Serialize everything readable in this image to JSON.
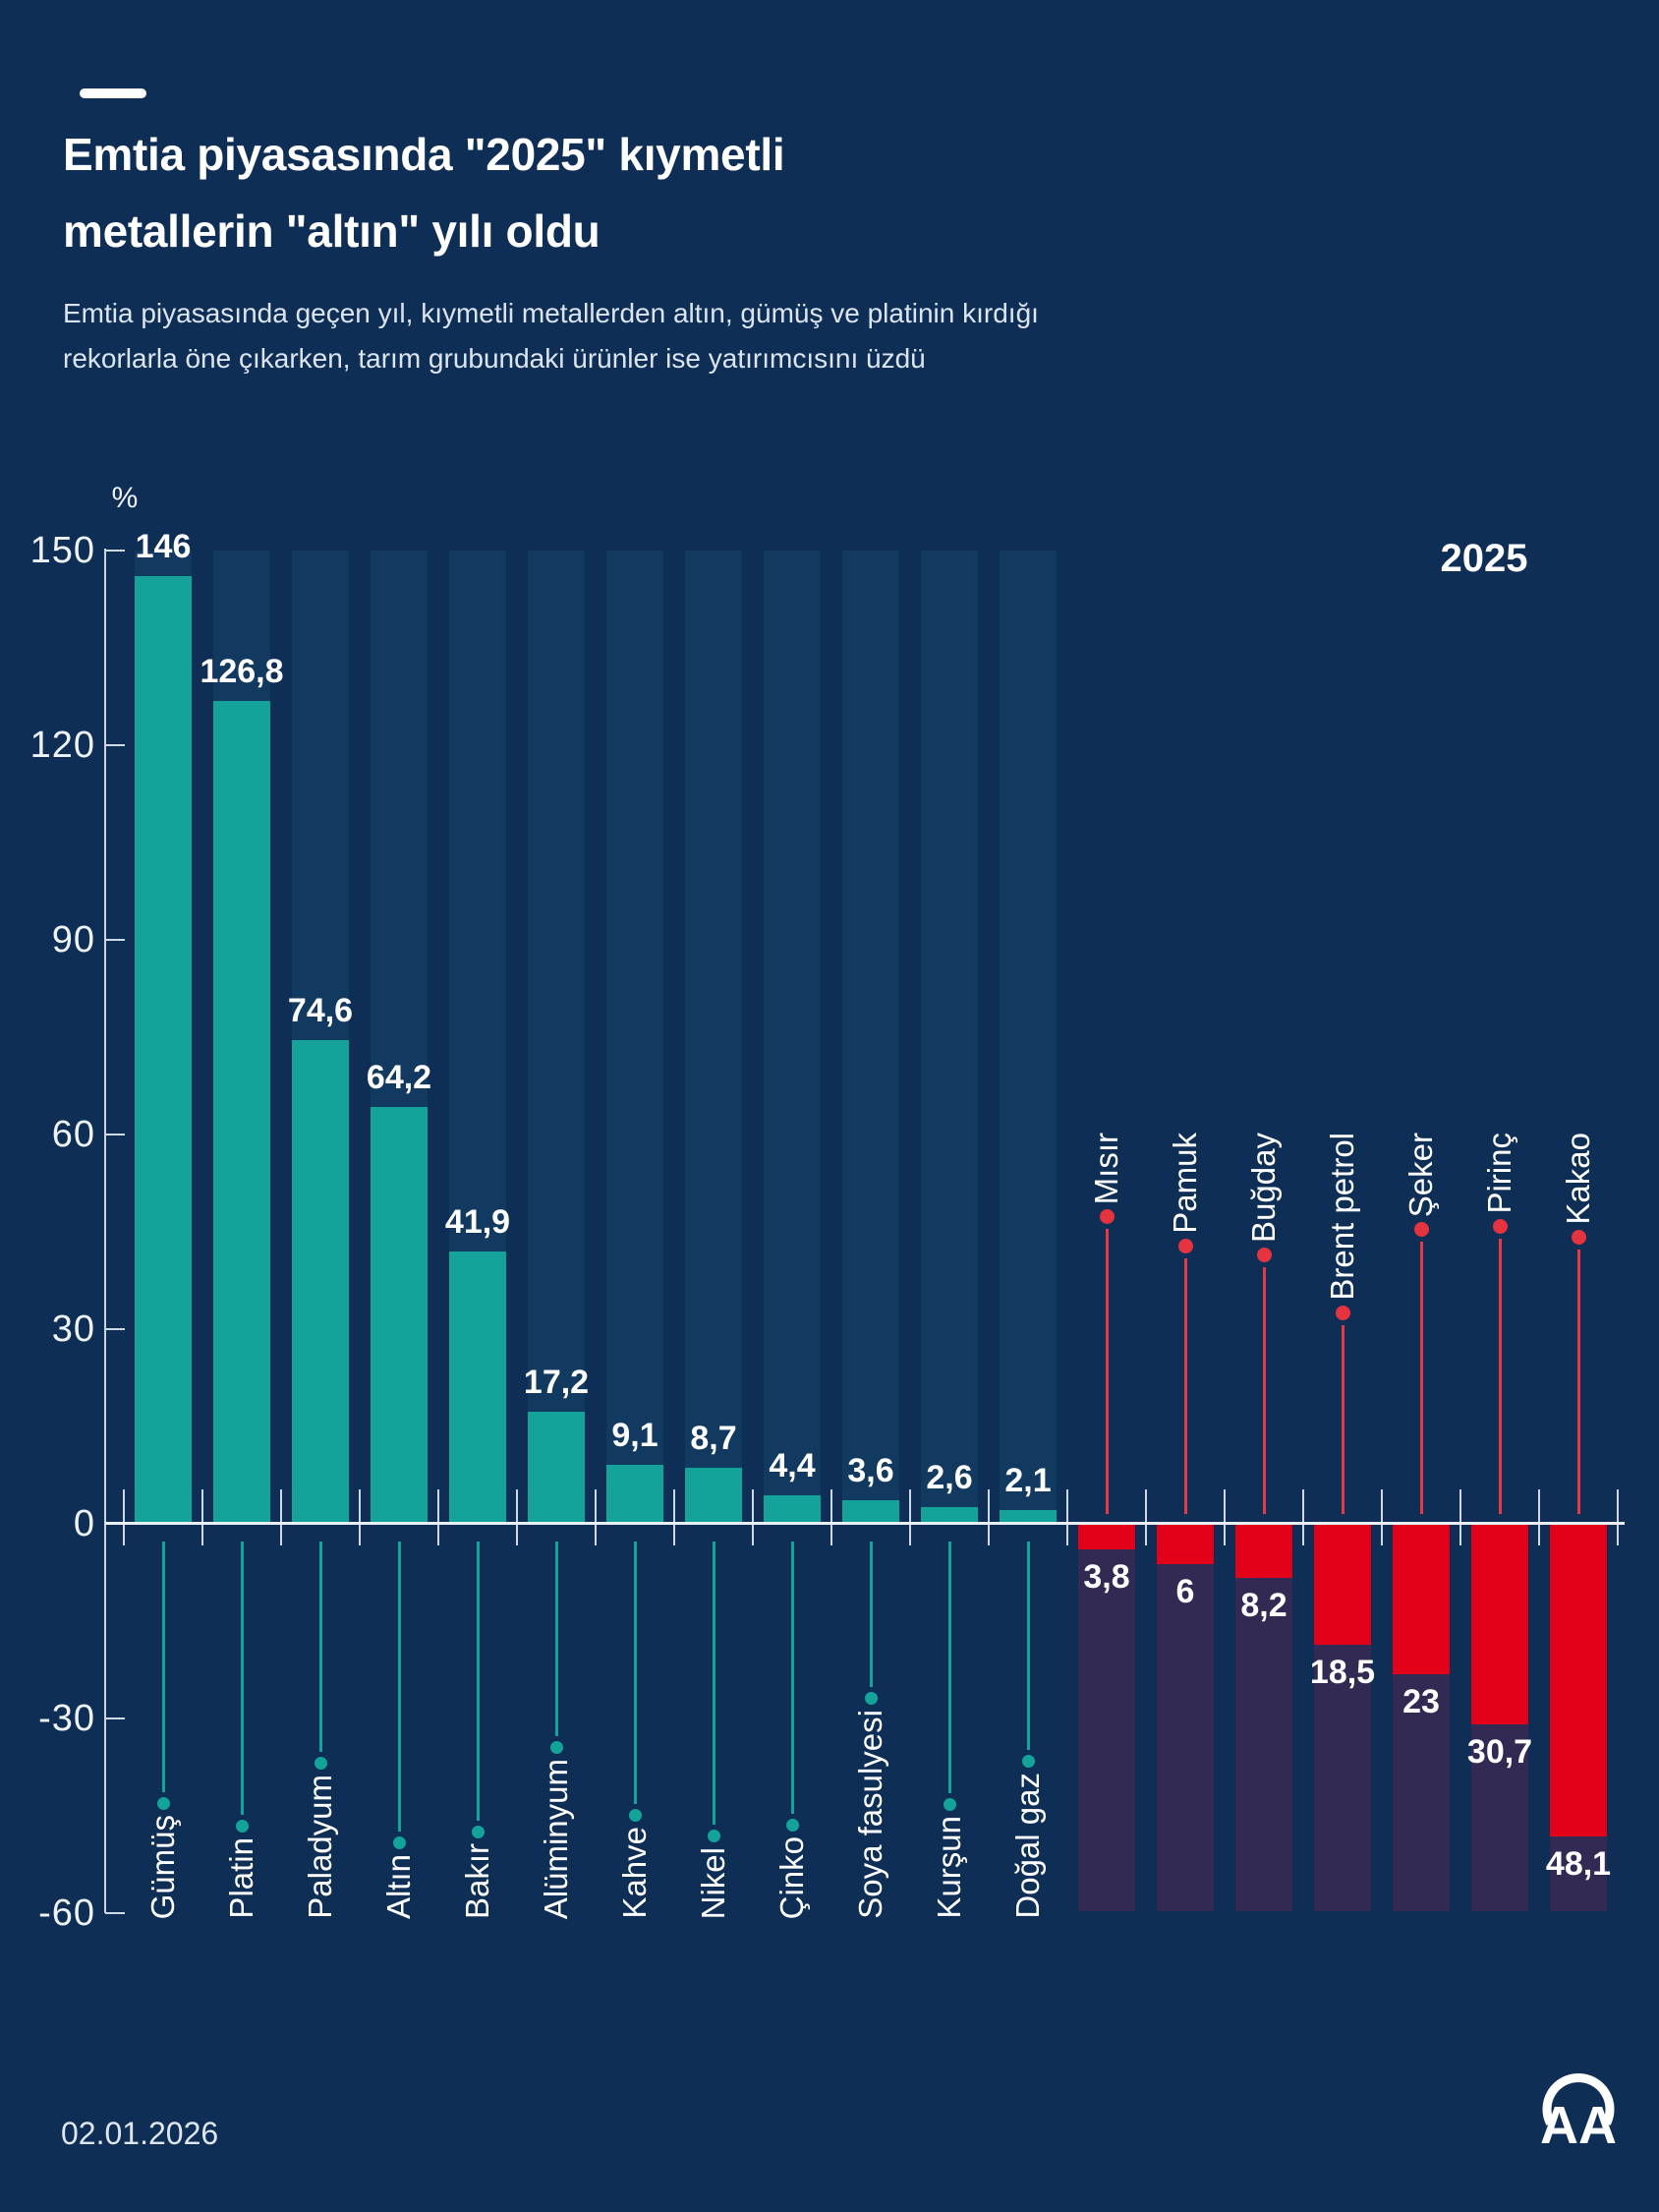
{
  "header": {
    "title_line1": "Emtia piyasasında \"2025\" kıymetli",
    "title_line2": "metallerin \"altın\" yılı oldu",
    "subtitle_line1": "Emtia piyasasında geçen yıl, kıymetli metallerden altın, gümüş ve platinin kırdığı",
    "subtitle_line2": "rekorlarla öne çıkarken, tarım grubundaki ürünler ise yatırımcısını üzdü"
  },
  "chart_data": {
    "type": "bar",
    "title": "Emtia piyasasında \"2025\" kıymetli metallerin \"altın\" yılı oldu",
    "year_label": "2025",
    "unit_label": "%",
    "ylabel": "%",
    "ylim": [
      -60,
      150
    ],
    "yticks": [
      150,
      120,
      90,
      60,
      30,
      0,
      -30,
      -60
    ],
    "grid": false,
    "legend_position": "none",
    "categories": [
      "Gümüş",
      "Platin",
      "Paladyum",
      "Altın",
      "Bakır",
      "Alüminyum",
      "Kahve",
      "Nikel",
      "Çinko",
      "Soya fasulyesi",
      "Kurşun",
      "Doğal gaz",
      "Mısır",
      "Pamuk",
      "Buğday",
      "Brent petrol",
      "Şeker",
      "Pirinç",
      "Kakao"
    ],
    "values": [
      146,
      126.8,
      74.6,
      64.2,
      41.9,
      17.2,
      9.1,
      8.7,
      4.4,
      3.6,
      2.6,
      2.1,
      -3.8,
      -6,
      -8.2,
      -18.5,
      -23,
      -30.7,
      -48.1
    ],
    "items": [
      {
        "label": "Gümüş",
        "value": 146,
        "display": "146"
      },
      {
        "label": "Platin",
        "value": 126.8,
        "display": "126,8"
      },
      {
        "label": "Paladyum",
        "value": 74.6,
        "display": "74,6"
      },
      {
        "label": "Altın",
        "value": 64.2,
        "display": "64,2"
      },
      {
        "label": "Bakır",
        "value": 41.9,
        "display": "41,9"
      },
      {
        "label": "Alüminyum",
        "value": 17.2,
        "display": "17,2"
      },
      {
        "label": "Kahve",
        "value": 9.1,
        "display": "9,1"
      },
      {
        "label": "Nikel",
        "value": 8.7,
        "display": "8,7"
      },
      {
        "label": "Çinko",
        "value": 4.4,
        "display": "4,4"
      },
      {
        "label": "Soya fasulyesi",
        "value": 3.6,
        "display": "3,6"
      },
      {
        "label": "Kurşun",
        "value": 2.6,
        "display": "2,6"
      },
      {
        "label": "Doğal gaz",
        "value": 2.1,
        "display": "2,1"
      },
      {
        "label": "Mısır",
        "value": -3.8,
        "display": "3,8"
      },
      {
        "label": "Pamuk",
        "value": -6,
        "display": "6"
      },
      {
        "label": "Buğday",
        "value": -8.2,
        "display": "8,2"
      },
      {
        "label": "Brent petrol",
        "value": -18.5,
        "display": "18,5"
      },
      {
        "label": "Şeker",
        "value": -23,
        "display": "23"
      },
      {
        "label": "Pirinç",
        "value": -30.7,
        "display": "30,7"
      },
      {
        "label": "Kakao",
        "value": -48.1,
        "display": "48,1"
      }
    ],
    "colors": {
      "background": "#0E2E56",
      "positive_bar": "#13A39B",
      "negative_bar": "#E30019",
      "positive_track": "#12395F",
      "negative_track": "#322A52",
      "axis": "#E9EFF6",
      "text": "#FFFFFF"
    }
  },
  "footer": {
    "date": "02.01.2026",
    "logo_text": "AA"
  }
}
